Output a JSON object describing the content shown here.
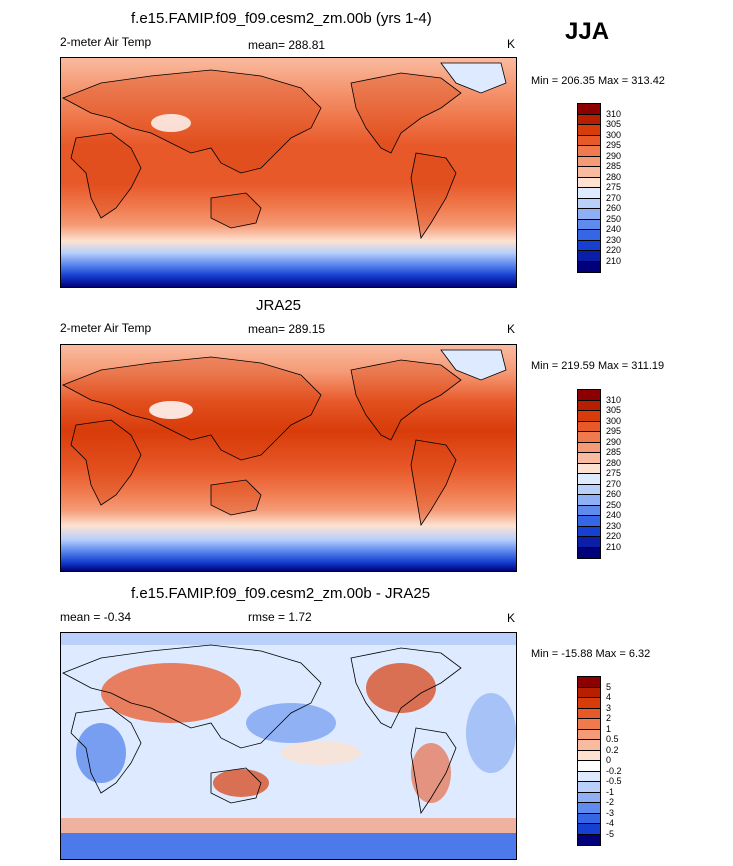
{
  "season": "JJA",
  "panels": [
    {
      "title": "f.e15.FAMIP.f09_f09.cesm2_zm.00b (yrs 1-4)",
      "left_label": "2-meter Air Temp",
      "center_label": "mean= 288.81",
      "units": "K",
      "minmax": "Min = 206.35 Max = 313.42"
    },
    {
      "title": "JRA25",
      "left_label": "2-meter Air Temp",
      "center_label": "mean= 289.15",
      "units": "K",
      "minmax": "Min = 219.59 Max = 311.19"
    },
    {
      "title": "f.e15.FAMIP.f09_f09.cesm2_zm.00b - JRA25",
      "left_label": "mean =  -0.34",
      "center_label": "rmse =   1.72",
      "units": "K",
      "minmax": "Min = -15.88 Max =   6.32"
    }
  ],
  "colorbar_abs": {
    "labels": [
      "310",
      "305",
      "300",
      "295",
      "290",
      "285",
      "280",
      "275",
      "270",
      "260",
      "250",
      "240",
      "230",
      "220",
      "210"
    ],
    "colors": [
      "#8b0000",
      "#b81f00",
      "#d83c0a",
      "#e8592a",
      "#f07a4e",
      "#f59a76",
      "#f9bb9f",
      "#fde2d2",
      "#ddeaff",
      "#b9d0fb",
      "#8fb0f4",
      "#5f8bee",
      "#3466e6",
      "#1540d2",
      "#0a1ea8",
      "#00007a"
    ]
  },
  "colorbar_diff": {
    "labels": [
      "5",
      "4",
      "3",
      "2",
      "1",
      "0.5",
      "0.2",
      "0",
      "-0.2",
      "-0.5",
      "-1",
      "-2",
      "-3",
      "-4",
      "-5"
    ],
    "colors": [
      "#8b0000",
      "#b81f00",
      "#d83c0a",
      "#e8592a",
      "#f07a4e",
      "#f59a76",
      "#f9bb9f",
      "#fde2d2",
      "#ffffff",
      "#ddeaff",
      "#b9d0fb",
      "#8fb0f4",
      "#5f8bee",
      "#3466e6",
      "#1540d2",
      "#00007a"
    ]
  }
}
